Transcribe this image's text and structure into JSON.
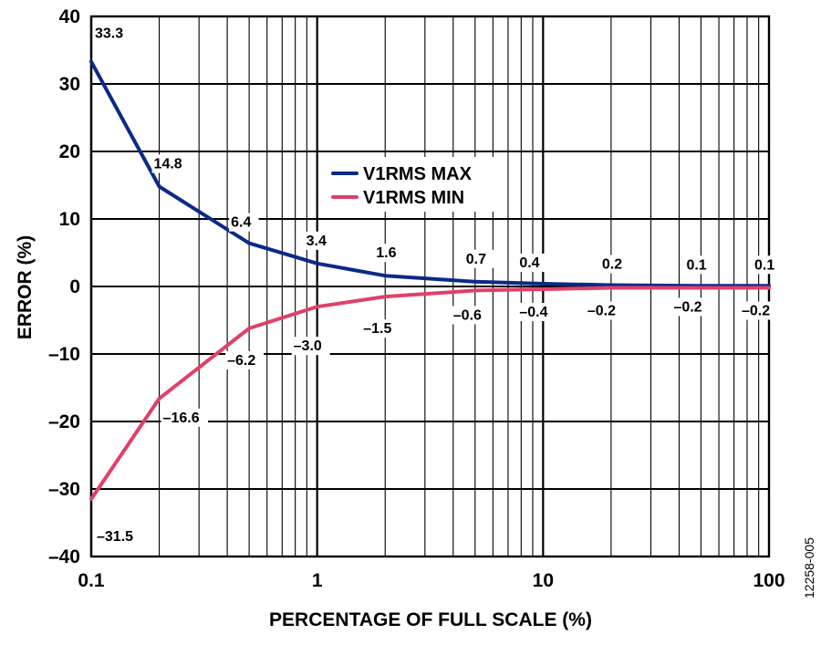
{
  "chart_data": {
    "type": "line",
    "xscale": "log",
    "xlabel": "PERCENTAGE OF FULL SCALE (%)",
    "ylabel": "ERROR (%)",
    "xlim": [
      0.1,
      100
    ],
    "ylim": [
      -40,
      40
    ],
    "grid": true,
    "legend_position": "top-center",
    "x_ticks": [
      {
        "value": 0.1,
        "label": "0.1"
      },
      {
        "value": 1,
        "label": "1"
      },
      {
        "value": 10,
        "label": "10"
      },
      {
        "value": 100,
        "label": "100"
      }
    ],
    "y_ticks": [
      {
        "value": 40,
        "label": "40"
      },
      {
        "value": 30,
        "label": "30"
      },
      {
        "value": 20,
        "label": "20"
      },
      {
        "value": 10,
        "label": "10"
      },
      {
        "value": 0,
        "label": "0"
      },
      {
        "value": -10,
        "label": "–10"
      },
      {
        "value": -20,
        "label": "–20"
      },
      {
        "value": -30,
        "label": "–30"
      },
      {
        "value": -40,
        "label": "–40"
      }
    ],
    "series": [
      {
        "name": "V1RMS MAX",
        "color": "#0b2a86",
        "x": [
          0.1,
          0.2,
          0.5,
          1,
          2,
          5,
          10,
          20,
          50,
          100
        ],
        "y": [
          33.3,
          14.8,
          6.4,
          3.4,
          1.6,
          0.7,
          0.4,
          0.2,
          0.1,
          0.1
        ],
        "labels": [
          "33.3",
          "14.8",
          "6.4",
          "3.4",
          "1.6",
          "0.7",
          "0.4",
          "0.2",
          "0.1",
          "0.1"
        ]
      },
      {
        "name": "V1RMS MIN",
        "color": "#e0406a",
        "x": [
          0.1,
          0.2,
          0.5,
          1,
          2,
          5,
          10,
          20,
          50,
          100
        ],
        "y": [
          -31.5,
          -16.6,
          -6.2,
          -3.0,
          -1.5,
          -0.6,
          -0.4,
          -0.2,
          -0.2,
          -0.2
        ],
        "labels": [
          "–31.5",
          "–16.6",
          "–6.2",
          "–3.0",
          "–1.5",
          "–0.6",
          "–0.4",
          "–0.2",
          "–0.2",
          "–0.2"
        ]
      }
    ],
    "figure_id": "12258-005"
  }
}
